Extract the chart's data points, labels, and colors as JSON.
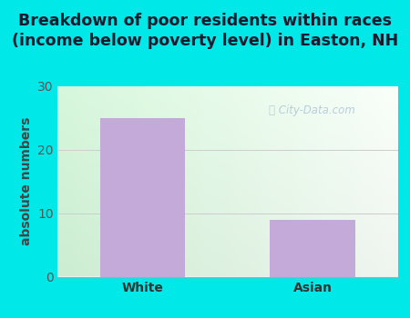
{
  "categories": [
    "White",
    "Asian"
  ],
  "values": [
    25,
    9
  ],
  "bar_color": "#c4aad8",
  "title_line1": "Breakdown of poor residents within races",
  "title_line2": "(income below poverty level) in Easton, NH",
  "ylabel": "absolute numbers",
  "ylim": [
    0,
    30
  ],
  "yticks": [
    0,
    10,
    20,
    30
  ],
  "outer_bg": "#00e8e8",
  "bg_color_left": "#ceeedd",
  "bg_color_right": "#f0f0f0",
  "grid_color": "#cccccc",
  "title_fontsize": 12.5,
  "ylabel_fontsize": 10,
  "tick_fontsize": 10,
  "watermark_text": "City-Data.com",
  "title_color": "#1a1a2e"
}
